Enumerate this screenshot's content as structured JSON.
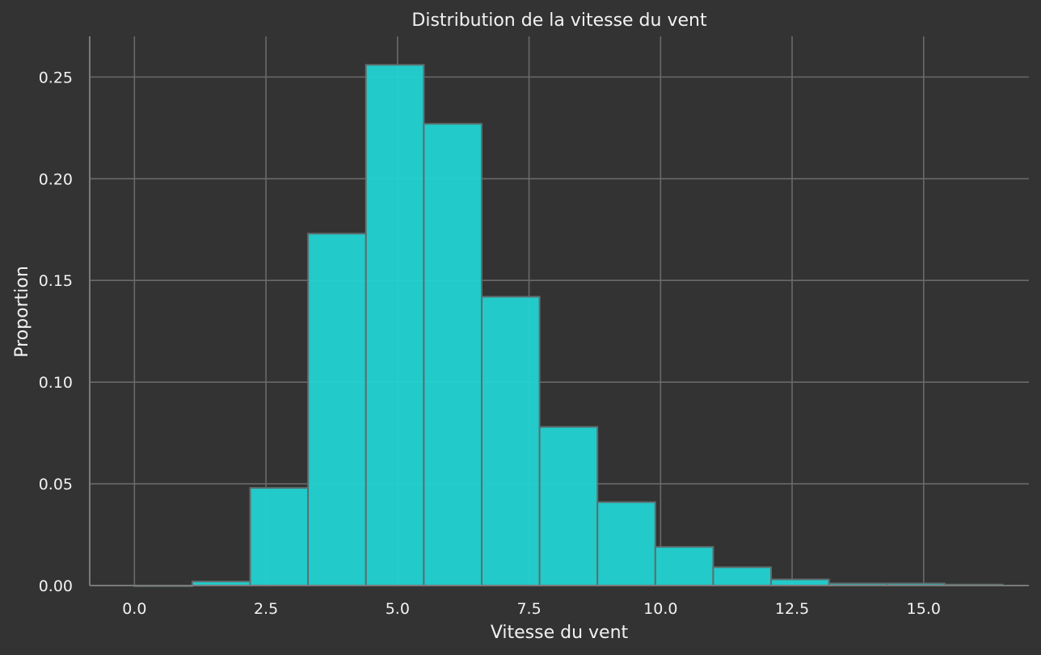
{
  "chart_data": {
    "type": "bar",
    "title": "Distribution de la vitesse du vent",
    "xlabel": "Vitesse du vent",
    "ylabel": "Proportion",
    "xlim": [
      -0.85,
      17.0
    ],
    "ylim": [
      0,
      0.27
    ],
    "xticks": [
      0.0,
      2.5,
      5.0,
      7.5,
      10.0,
      12.5,
      15.0
    ],
    "xtick_labels": [
      "0.0",
      "2.5",
      "5.0",
      "7.5",
      "10.0",
      "12.5",
      "15.0"
    ],
    "yticks": [
      0.0,
      0.05,
      0.1,
      0.15,
      0.2,
      0.25
    ],
    "ytick_labels": [
      "0.00",
      "0.05",
      "0.10",
      "0.15",
      "0.20",
      "0.25"
    ],
    "grid": true,
    "color": "#22d3d3",
    "bins": [
      {
        "x0": 0.0,
        "x1": 1.1,
        "value": 0.0
      },
      {
        "x0": 1.1,
        "x1": 2.2,
        "value": 0.002
      },
      {
        "x0": 2.2,
        "x1": 3.3,
        "value": 0.048
      },
      {
        "x0": 3.3,
        "x1": 4.4,
        "value": 0.173
      },
      {
        "x0": 4.4,
        "x1": 5.5,
        "value": 0.256
      },
      {
        "x0": 5.5,
        "x1": 6.6,
        "value": 0.227
      },
      {
        "x0": 6.6,
        "x1": 7.7,
        "value": 0.142
      },
      {
        "x0": 7.7,
        "x1": 8.8,
        "value": 0.078
      },
      {
        "x0": 8.8,
        "x1": 9.9,
        "value": 0.041
      },
      {
        "x0": 9.9,
        "x1": 11.0,
        "value": 0.019
      },
      {
        "x0": 11.0,
        "x1": 12.1,
        "value": 0.009
      },
      {
        "x0": 12.1,
        "x1": 13.2,
        "value": 0.003
      },
      {
        "x0": 13.2,
        "x1": 14.3,
        "value": 0.001
      },
      {
        "x0": 14.3,
        "x1": 15.4,
        "value": 0.001
      },
      {
        "x0": 15.4,
        "x1": 16.5,
        "value": 0.0005
      }
    ]
  }
}
